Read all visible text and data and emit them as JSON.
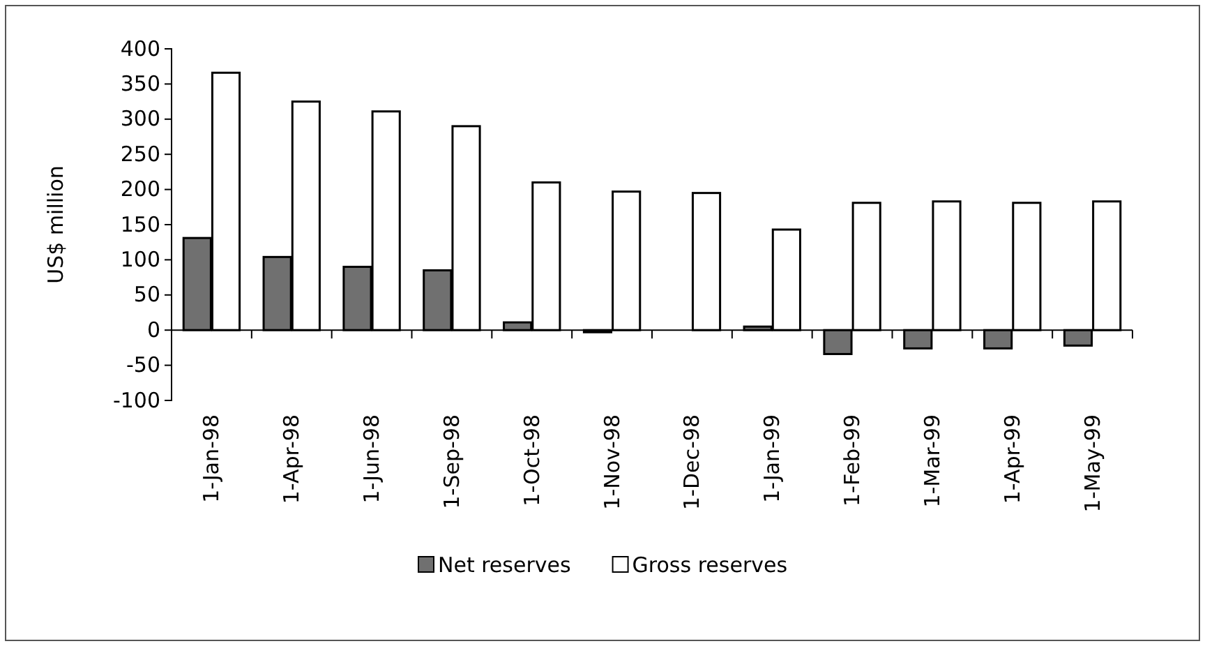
{
  "chart_data": {
    "type": "bar",
    "ylabel": "US$ million",
    "categories": [
      "1-Jan-98",
      "1-Apr-98",
      "1-Jun-98",
      "1-Sep-98",
      "1-Oct-98",
      "1-Nov-98",
      "1-Dec-98",
      "1-Jan-99",
      "1-Feb-99",
      "1-Mar-99",
      "1-Apr-99",
      "1-May-99"
    ],
    "series": [
      {
        "name": "Net reserves",
        "color": "#707070",
        "values": [
          131,
          104,
          90,
          85,
          11,
          -3,
          0,
          5,
          -34,
          -26,
          -26,
          -22
        ]
      },
      {
        "name": "Gross reserves",
        "color": "#ffffff",
        "values": [
          366,
          325,
          311,
          290,
          210,
          197,
          195,
          143,
          181,
          183,
          181,
          183
        ]
      }
    ],
    "ylim": [
      -100,
      400
    ],
    "yticks": [
      -100,
      -50,
      0,
      50,
      100,
      150,
      200,
      250,
      300,
      350,
      400
    ],
    "legend": "bottom"
  }
}
